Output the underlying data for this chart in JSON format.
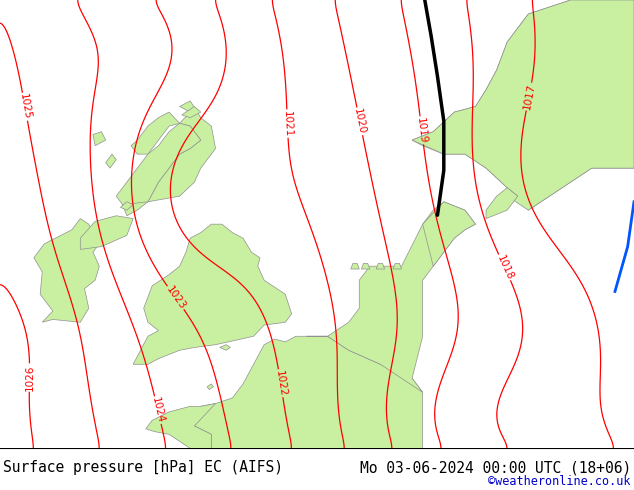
{
  "title_left": "Surface pressure [hPa] EC (AIFS)",
  "title_right": "Mo 03-06-2024 00:00 UTC (18+06)",
  "watermark": "©weatheronline.co.uk",
  "land_color": "#c8f0a0",
  "sea_color": "#d0d0d0",
  "contour_color": "#ff0000",
  "coastline_color": "#909090",
  "black_line_color": "#000000",
  "blue_line_color": "#0055ff",
  "title_fontsize": 10.5,
  "watermark_color": "#0000cc",
  "figsize": [
    6.34,
    4.9
  ],
  "dpi": 100
}
